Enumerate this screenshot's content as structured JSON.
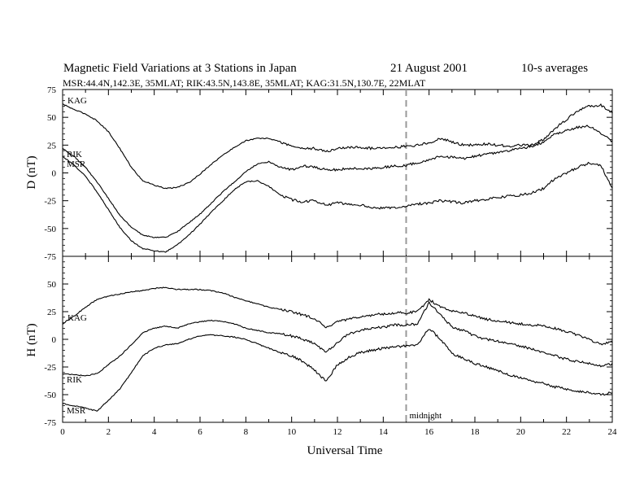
{
  "title": "Magnetic Field Variations at 3 Stations in Japan",
  "date": "21  August  2001",
  "averaging": "10-s averages",
  "subtitle": "MSR:44.4N,142.3E, 35MLAT;   RIK:43.5N,143.8E, 35MLAT;   KAG:31.5N,130.7E, 22MLAT",
  "chart_data": [
    {
      "type": "line",
      "panel": "D",
      "ylabel": "D (nT)",
      "xlim": [
        0,
        24
      ],
      "ylim": [
        -75,
        75
      ],
      "yticks": [
        75,
        50,
        25,
        0,
        -25,
        -50,
        -75
      ],
      "grid": false,
      "series": [
        {
          "name": "KAG",
          "x": [
            0,
            0.5,
            1,
            1.5,
            2,
            2.5,
            3,
            3.5,
            4,
            4.5,
            5,
            5.5,
            6,
            6.5,
            7,
            7.5,
            8,
            8.5,
            9,
            9.5,
            10,
            10.5,
            11,
            11.5,
            12,
            12.5,
            13,
            13.5,
            14,
            14.5,
            15,
            15.5,
            16,
            16.5,
            17,
            17.5,
            18,
            18.5,
            19,
            19.5,
            20,
            20.5,
            21,
            21.5,
            22,
            22.5,
            23,
            23.5,
            24
          ],
          "y": [
            62,
            57,
            53,
            47,
            37,
            22,
            5,
            -7,
            -11,
            -14,
            -13,
            -9,
            -1,
            8,
            16,
            23,
            29,
            31,
            31,
            28,
            24,
            22,
            22,
            19,
            22,
            23,
            23,
            22,
            23,
            23,
            24,
            25,
            27,
            31,
            28,
            25,
            25,
            26,
            25,
            24,
            25,
            25,
            30,
            40,
            48,
            56,
            60,
            61,
            54
          ]
        },
        {
          "name": "RIK",
          "x": [
            0,
            0.5,
            1,
            1.5,
            2,
            2.5,
            3,
            3.5,
            4,
            4.5,
            5,
            5.5,
            6,
            6.5,
            7,
            7.5,
            8,
            8.5,
            9,
            9.5,
            10,
            10.5,
            11,
            11.5,
            12,
            12.5,
            13,
            13.5,
            14,
            14.5,
            15,
            15.5,
            16,
            16.5,
            17,
            17.5,
            18,
            18.5,
            19,
            19.5,
            20,
            20.5,
            21,
            21.5,
            22,
            22.5,
            23,
            23.5,
            24
          ],
          "y": [
            22,
            15,
            5,
            -8,
            -23,
            -38,
            -49,
            -56,
            -58,
            -58,
            -53,
            -45,
            -37,
            -27,
            -17,
            -8,
            1,
            8,
            10,
            5,
            3,
            6,
            5,
            3,
            3,
            4,
            4,
            4,
            5,
            6,
            7,
            9,
            12,
            15,
            14,
            13,
            15,
            17,
            18,
            20,
            22,
            24,
            28,
            35,
            38,
            41,
            42,
            36,
            28
          ]
        },
        {
          "name": "MSR",
          "x": [
            0,
            0.5,
            1,
            1.5,
            2,
            2.5,
            3,
            3.5,
            4,
            4.5,
            5,
            5.5,
            6,
            6.5,
            7,
            7.5,
            8,
            8.5,
            9,
            9.5,
            10,
            10.5,
            11,
            11.5,
            12,
            12.5,
            13,
            13.5,
            14,
            14.5,
            15,
            15.5,
            16,
            16.5,
            17,
            17.5,
            18,
            18.5,
            19,
            19.5,
            20,
            20.5,
            21,
            21.5,
            22,
            22.5,
            23,
            23.5,
            24
          ],
          "y": [
            15,
            7,
            -3,
            -17,
            -33,
            -49,
            -61,
            -68,
            -70,
            -71,
            -65,
            -56,
            -46,
            -35,
            -25,
            -15,
            -8,
            -7,
            -12,
            -20,
            -24,
            -26,
            -25,
            -29,
            -27,
            -28,
            -29,
            -31,
            -32,
            -31,
            -30,
            -28,
            -27,
            -25,
            -26,
            -27,
            -25,
            -24,
            -22,
            -21,
            -20,
            -18,
            -14,
            -5,
            0,
            5,
            9,
            7,
            -14
          ]
        }
      ]
    },
    {
      "type": "line",
      "panel": "H",
      "ylabel": "H (nT)",
      "xlabel": "Universal Time",
      "xlim": [
        0,
        24
      ],
      "ylim": [
        -75,
        75
      ],
      "xticks": [
        0,
        2,
        4,
        6,
        8,
        10,
        12,
        14,
        16,
        18,
        20,
        22,
        24
      ],
      "yticks": [
        50,
        25,
        0,
        -25,
        -50,
        -75
      ],
      "grid": false,
      "annotation": {
        "x": 15,
        "text": "midnight"
      },
      "series": [
        {
          "name": "KAG",
          "x": [
            0,
            0.5,
            1,
            1.5,
            2,
            2.5,
            3,
            3.5,
            4,
            4.5,
            5,
            5.5,
            6,
            6.5,
            7,
            7.5,
            8,
            8.5,
            9,
            9.5,
            10,
            10.5,
            11,
            11.5,
            12,
            12.5,
            13,
            13.5,
            14,
            14.5,
            15,
            15.5,
            16,
            16.5,
            17,
            17.5,
            18,
            18.5,
            19,
            19.5,
            20,
            20.5,
            21,
            21.5,
            22,
            22.5,
            23,
            23.5,
            24
          ],
          "y": [
            14,
            21,
            29,
            36,
            39,
            41,
            43,
            44,
            46,
            47,
            45,
            45,
            45,
            44,
            42,
            38,
            35,
            32,
            29,
            27,
            25,
            22,
            19,
            10,
            16,
            18,
            20,
            22,
            23,
            24,
            24,
            25,
            36,
            29,
            26,
            24,
            21,
            18,
            17,
            15,
            14,
            13,
            12,
            10,
            7,
            4,
            0,
            -5,
            -2
          ]
        },
        {
          "name": "RIK",
          "x": [
            0,
            0.5,
            1,
            1.5,
            2,
            2.5,
            3,
            3.5,
            4,
            4.5,
            5,
            5.5,
            6,
            6.5,
            7,
            7.5,
            8,
            8.5,
            9,
            9.5,
            10,
            10.5,
            11,
            11.5,
            12,
            12.5,
            13,
            13.5,
            14,
            14.5,
            15,
            15.5,
            16,
            16.5,
            17,
            17.5,
            18,
            18.5,
            19,
            19.5,
            20,
            20.5,
            21,
            21.5,
            22,
            22.5,
            23,
            23.5,
            24
          ],
          "y": [
            -31,
            -32,
            -33,
            -31,
            -23,
            -15,
            -5,
            6,
            10,
            12,
            10,
            14,
            16,
            17,
            16,
            14,
            10,
            8,
            6,
            5,
            3,
            0,
            -4,
            -12,
            -3,
            5,
            8,
            10,
            11,
            13,
            13,
            14,
            33,
            22,
            11,
            8,
            3,
            0,
            -2,
            -4,
            -6,
            -9,
            -12,
            -15,
            -18,
            -20,
            -22,
            -24,
            -22
          ]
        },
        {
          "name": "MSR",
          "x": [
            0,
            0.5,
            1,
            1.5,
            2,
            2.5,
            3,
            3.5,
            4,
            4.5,
            5,
            5.5,
            6,
            6.5,
            7,
            7.5,
            8,
            8.5,
            9,
            9.5,
            10,
            10.5,
            11,
            11.5,
            12,
            12.5,
            13,
            13.5,
            14,
            14.5,
            15,
            15.5,
            16,
            16.5,
            17,
            17.5,
            18,
            18.5,
            19,
            19.5,
            20,
            20.5,
            21,
            21.5,
            22,
            22.5,
            23,
            23.5,
            24
          ],
          "y": [
            -58,
            -60,
            -62,
            -65,
            -55,
            -45,
            -30,
            -15,
            -8,
            -5,
            -4,
            0,
            3,
            4,
            3,
            2,
            0,
            -4,
            -8,
            -12,
            -15,
            -20,
            -28,
            -38,
            -23,
            -16,
            -12,
            -10,
            -8,
            -7,
            -6,
            -5,
            10,
            0,
            -13,
            -17,
            -22,
            -25,
            -28,
            -32,
            -35,
            -38,
            -40,
            -43,
            -45,
            -47,
            -48,
            -50,
            -48
          ]
        }
      ]
    }
  ]
}
